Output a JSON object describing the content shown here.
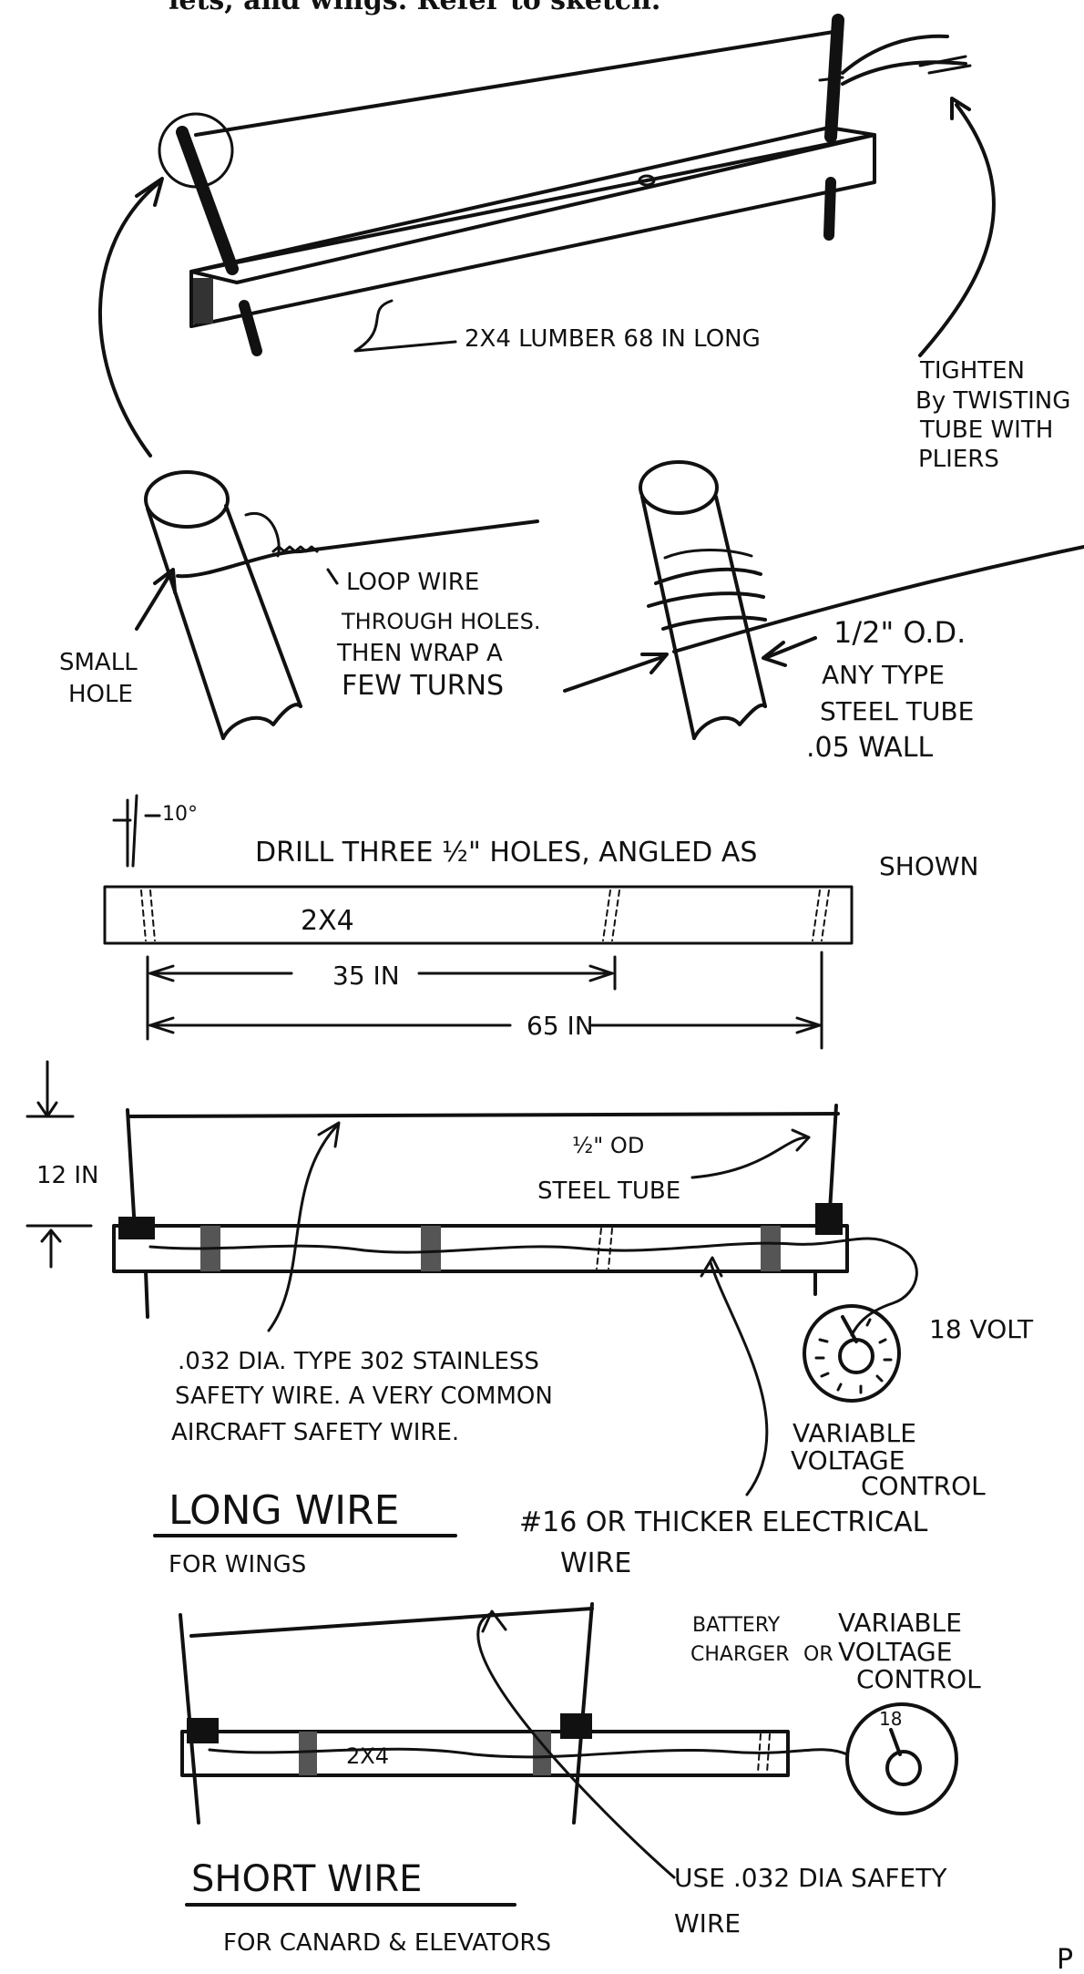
{
  "header_text": "lets, and wings.  Refer to sketch.",
  "fig1": {
    "lumber_label": "2X4 LUMBER 68 IN LONG",
    "tighten_label": [
      "TIGHTEN",
      "By TWISTING",
      "TUBE WITH",
      "PLIERS"
    ],
    "small_hole_label": [
      "SMALL",
      "HOLE"
    ],
    "loop_label": [
      "LOOP WIRE",
      "THROUGH HOLES.",
      "THEN WRAP A",
      "FEW TURNS"
    ],
    "tube_label": [
      "1/2\" O.D.",
      "ANY TYPE",
      "STEEL TUBE",
      ".05 WALL"
    ]
  },
  "fig2": {
    "angle_label": "10°",
    "drill_label": "DRILL  THREE ½\" HOLES, ANGLED AS",
    "drill_label_2": "SHOWN",
    "board_label": "2X4",
    "dim_35": "35 IN",
    "dim_65": "65 IN"
  },
  "fig3": {
    "height_label": "12 IN",
    "steel_tube_label": [
      "½\" OD",
      "STEEL TUBE"
    ],
    "voltage_label": "18 VOLT",
    "safety_wire_label": [
      ".032 DIA. TYPE 302 STAINLESS",
      "SAFETY WIRE. A VERY COMMON",
      "AIRCRAFT SAFETY WIRE."
    ],
    "control_label": [
      "VARIABLE",
      "VOLTAGE",
      "CONTROL"
    ],
    "title": "LONG WIRE",
    "subtitle": "FOR WINGS",
    "electrical_label": [
      "#16 OR THICKER ELECTRICAL",
      "WIRE"
    ]
  },
  "fig4": {
    "battery_label": [
      "BATTERY",
      "CHARGER"
    ],
    "or_label": "OR",
    "control_label": [
      "VARIABLE",
      "VOLTAGE",
      "CONTROL"
    ],
    "board_label": "2X4",
    "dial_label": "18",
    "title": "SHORT WIRE",
    "subtitle": "FOR CANARD & ELEVATORS",
    "use_label": [
      "USE .032 DIA SAFETY",
      "WIRE"
    ]
  },
  "page_letter": "P"
}
